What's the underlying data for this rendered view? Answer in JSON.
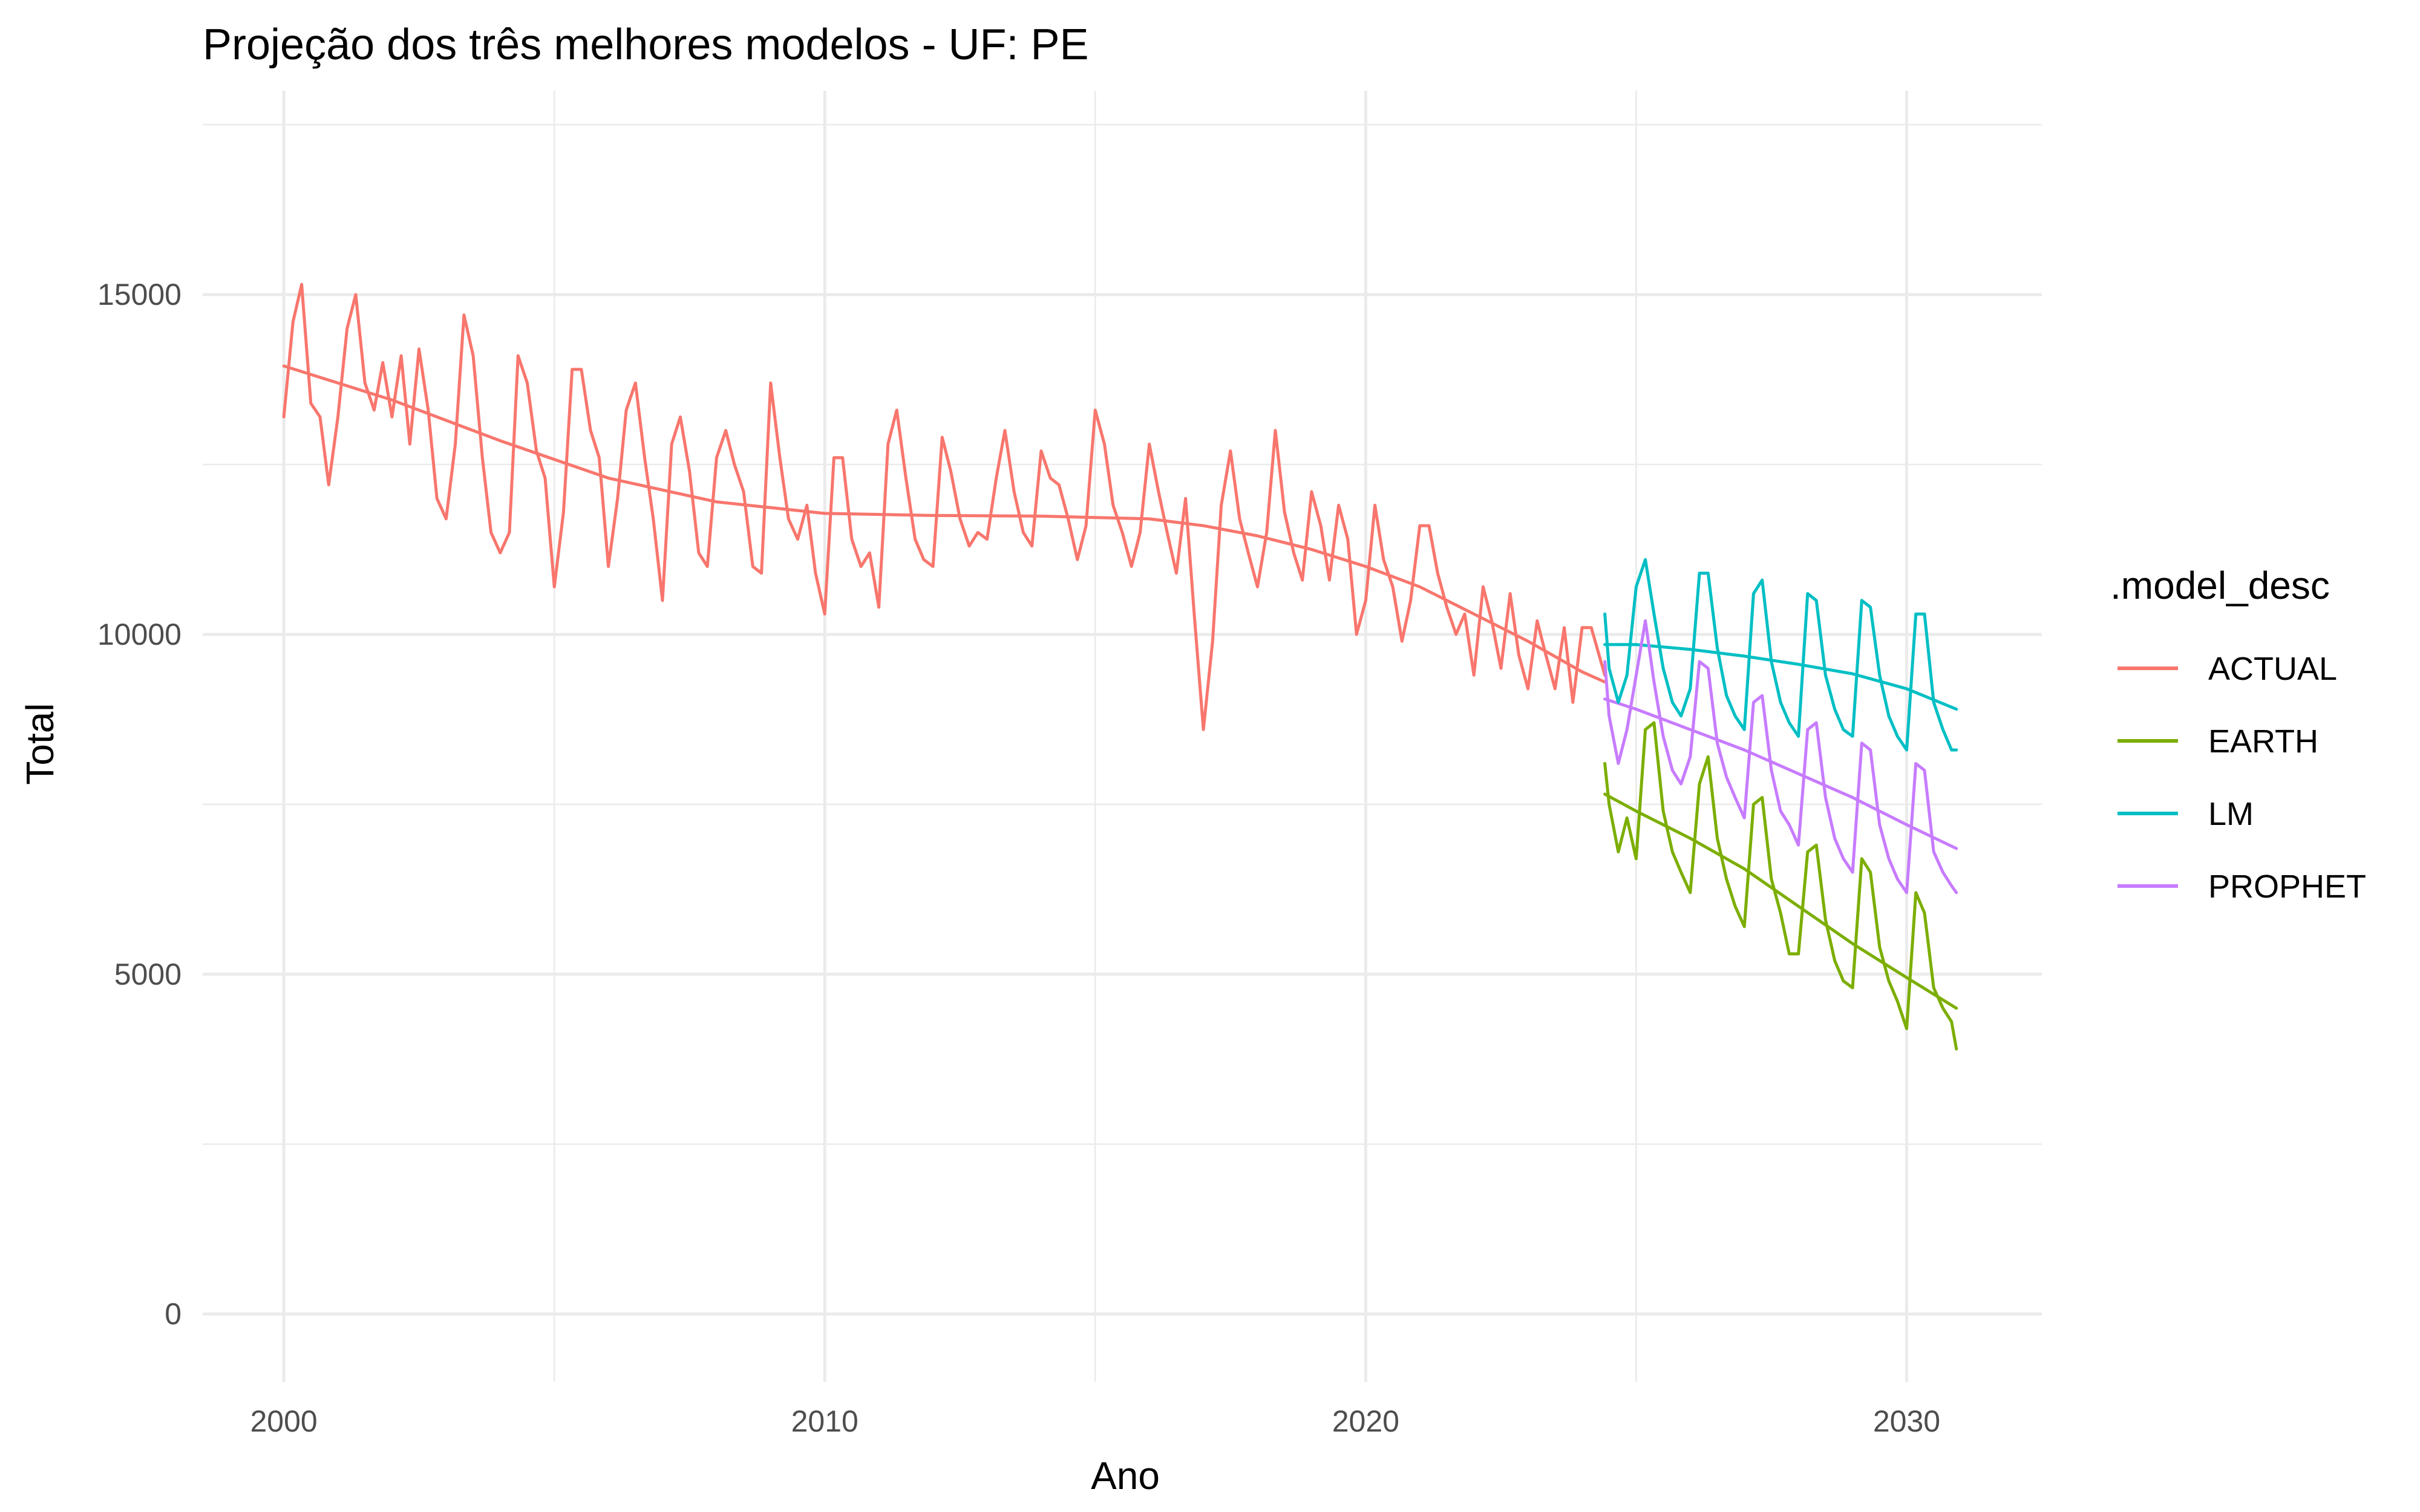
{
  "chart_data": {
    "type": "line",
    "title": "Projeção dos três melhores modelos - UF: PE",
    "xlabel": "Ano",
    "ylabel": "Total",
    "xlim": [
      1998.5,
      2032.5
    ],
    "ylim": [
      -1000,
      18000
    ],
    "x_ticks": [
      2000,
      2010,
      2020,
      2030
    ],
    "x_tick_labels": [
      "2000",
      "2010",
      "2020",
      "2030"
    ],
    "y_ticks": [
      0,
      5000,
      10000,
      15000
    ],
    "y_tick_labels": [
      "0",
      "5000",
      "10000",
      "15000"
    ],
    "grid": true,
    "legend": {
      "title": ".model_desc",
      "position": "right",
      "entries": [
        "ACTUAL",
        "EARTH",
        "LM",
        "PROPHET"
      ]
    },
    "series": [
      {
        "name": "ACTUAL",
        "color": "#F8766D",
        "x": [
          2000.0,
          2000.17,
          2000.33,
          2000.5,
          2000.67,
          2000.83,
          2001.0,
          2001.17,
          2001.33,
          2001.5,
          2001.67,
          2001.83,
          2002.0,
          2002.17,
          2002.33,
          2002.5,
          2002.67,
          2002.83,
          2003.0,
          2003.17,
          2003.33,
          2003.5,
          2003.67,
          2003.83,
          2004.0,
          2004.17,
          2004.33,
          2004.5,
          2004.67,
          2004.83,
          2005.0,
          2005.17,
          2005.33,
          2005.5,
          2005.67,
          2005.83,
          2006.0,
          2006.17,
          2006.33,
          2006.5,
          2006.67,
          2006.83,
          2007.0,
          2007.17,
          2007.33,
          2007.5,
          2007.67,
          2007.83,
          2008.0,
          2008.17,
          2008.33,
          2008.5,
          2008.67,
          2008.83,
          2009.0,
          2009.17,
          2009.33,
          2009.5,
          2009.67,
          2009.83,
          2010.0,
          2010.17,
          2010.33,
          2010.5,
          2010.67,
          2010.83,
          2011.0,
          2011.17,
          2011.33,
          2011.5,
          2011.67,
          2011.83,
          2012.0,
          2012.17,
          2012.33,
          2012.5,
          2012.67,
          2012.83,
          2013.0,
          2013.17,
          2013.33,
          2013.5,
          2013.67,
          2013.83,
          2014.0,
          2014.17,
          2014.33,
          2014.5,
          2014.67,
          2014.83,
          2015.0,
          2015.17,
          2015.33,
          2015.5,
          2015.67,
          2015.83,
          2016.0,
          2016.17,
          2016.33,
          2016.5,
          2016.67,
          2016.83,
          2017.0,
          2017.17,
          2017.33,
          2017.5,
          2017.67,
          2017.83,
          2018.0,
          2018.17,
          2018.33,
          2018.5,
          2018.67,
          2018.83,
          2019.0,
          2019.17,
          2019.33,
          2019.5,
          2019.67,
          2019.83,
          2020.0,
          2020.17,
          2020.33,
          2020.5,
          2020.67,
          2020.83,
          2021.0,
          2021.17,
          2021.33,
          2021.5,
          2021.67,
          2021.83,
          2022.0,
          2022.17,
          2022.33,
          2022.5,
          2022.67,
          2022.83,
          2023.0,
          2023.17,
          2023.33,
          2023.5,
          2023.67,
          2023.83,
          2024.0,
          2024.17,
          2024.42
        ],
        "y": [
          13200,
          14600,
          15150,
          13400,
          13200,
          12200,
          13200,
          14500,
          15000,
          13700,
          13300,
          14000,
          13200,
          14100,
          12800,
          14200,
          13300,
          12000,
          11700,
          12800,
          14700,
          14100,
          12600,
          11500,
          11200,
          11500,
          14100,
          13700,
          12700,
          12300,
          10700,
          11800,
          13900,
          13900,
          13000,
          12600,
          11000,
          12000,
          13300,
          13700,
          12600,
          11700,
          10500,
          12800,
          13200,
          12400,
          11200,
          11000,
          12600,
          13000,
          12500,
          12100,
          11000,
          10900,
          13700,
          12600,
          11700,
          11400,
          11900,
          10900,
          10300,
          12600,
          12600,
          11400,
          11000,
          11200,
          10400,
          12800,
          13300,
          12300,
          11400,
          11100,
          11000,
          12900,
          12400,
          11700,
          11300,
          11500,
          11400,
          12300,
          13000,
          12100,
          11500,
          11300,
          12700,
          12300,
          12200,
          11700,
          11100,
          11600,
          13300,
          12800,
          11900,
          11500,
          11000,
          11500,
          12800,
          12100,
          11500,
          10900,
          12000,
          10300,
          8600,
          9900,
          11900,
          12700,
          11700,
          11200,
          10700,
          11500,
          13000,
          11800,
          11200,
          10800,
          12100,
          11600,
          10800,
          11900,
          11400,
          10000,
          10500,
          11900,
          11100,
          10700,
          9900,
          10500,
          11600,
          11600,
          10900,
          10400,
          10000,
          10300,
          9400,
          10700,
          10200,
          9500,
          10600,
          9700,
          9200,
          10200,
          9700,
          9200,
          10100,
          9000,
          10100,
          10100,
          9400
        ]
      },
      {
        "name": "EARTH",
        "color": "#7CAE00",
        "x": [
          2024.42,
          2024.5,
          2024.67,
          2024.83,
          2025.0,
          2025.17,
          2025.33,
          2025.5,
          2025.67,
          2025.83,
          2026.0,
          2026.17,
          2026.33,
          2026.5,
          2026.67,
          2026.83,
          2027.0,
          2027.17,
          2027.33,
          2027.5,
          2027.67,
          2027.83,
          2028.0,
          2028.17,
          2028.33,
          2028.5,
          2028.67,
          2028.83,
          2029.0,
          2029.17,
          2029.33,
          2029.5,
          2029.67,
          2029.83,
          2030.0,
          2030.17,
          2030.33,
          2030.5,
          2030.67,
          2030.83,
          2030.92
        ],
        "y": [
          8100,
          7500,
          6800,
          7300,
          6700,
          8600,
          8700,
          7400,
          6800,
          6500,
          6200,
          7800,
          8200,
          7000,
          6400,
          6000,
          5700,
          7500,
          7600,
          6400,
          5900,
          5300,
          5300,
          6800,
          6900,
          5800,
          5200,
          4900,
          4800,
          6700,
          6500,
          5400,
          4900,
          4600,
          4200,
          6200,
          5900,
          4800,
          4500,
          4300,
          3900
        ]
      },
      {
        "name": "LM",
        "color": "#00BFC4",
        "x": [
          2024.42,
          2024.5,
          2024.67,
          2024.83,
          2025.0,
          2025.17,
          2025.33,
          2025.5,
          2025.67,
          2025.83,
          2026.0,
          2026.17,
          2026.33,
          2026.5,
          2026.67,
          2026.83,
          2027.0,
          2027.17,
          2027.33,
          2027.5,
          2027.67,
          2027.83,
          2028.0,
          2028.17,
          2028.33,
          2028.5,
          2028.67,
          2028.83,
          2029.0,
          2029.17,
          2029.33,
          2029.5,
          2029.67,
          2029.83,
          2030.0,
          2030.17,
          2030.33,
          2030.5,
          2030.67,
          2030.83,
          2030.92
        ],
        "y": [
          10300,
          9500,
          9000,
          9400,
          10700,
          11100,
          10300,
          9500,
          9000,
          8800,
          9200,
          10900,
          10900,
          9800,
          9100,
          8800,
          8600,
          10600,
          10800,
          9600,
          9000,
          8700,
          8500,
          10600,
          10500,
          9400,
          8900,
          8600,
          8500,
          10500,
          10400,
          9400,
          8800,
          8500,
          8300,
          10300,
          10300,
          9000,
          8600,
          8300,
          8300
        ]
      },
      {
        "name": "PROPHET",
        "color": "#C77CFF",
        "x": [
          2024.42,
          2024.5,
          2024.67,
          2024.83,
          2025.0,
          2025.17,
          2025.33,
          2025.5,
          2025.67,
          2025.83,
          2026.0,
          2026.17,
          2026.33,
          2026.5,
          2026.67,
          2026.83,
          2027.0,
          2027.17,
          2027.33,
          2027.5,
          2027.67,
          2027.83,
          2028.0,
          2028.17,
          2028.33,
          2028.5,
          2028.67,
          2028.83,
          2029.0,
          2029.17,
          2029.33,
          2029.5,
          2029.67,
          2029.83,
          2030.0,
          2030.17,
          2030.33,
          2030.5,
          2030.67,
          2030.83,
          2030.92
        ],
        "y": [
          9600,
          8800,
          8100,
          8600,
          9400,
          10200,
          9300,
          8500,
          8000,
          7800,
          8200,
          9600,
          9500,
          8400,
          7900,
          7600,
          7300,
          9000,
          9100,
          8000,
          7400,
          7200,
          6900,
          8600,
          8700,
          7600,
          7000,
          6700,
          6500,
          8400,
          8300,
          7200,
          6700,
          6400,
          6200,
          8100,
          8000,
          6800,
          6500,
          6300,
          6200
        ]
      }
    ],
    "trend_lines": [
      {
        "name": "ACTUAL",
        "color": "#F8766D",
        "x": [
          2000,
          2002,
          2004,
          2006,
          2008,
          2010,
          2012,
          2014,
          2016,
          2017,
          2018,
          2019,
          2020,
          2021,
          2022,
          2023,
          2024,
          2024.42
        ],
        "y": [
          13950,
          13450,
          12850,
          12300,
          11950,
          11780,
          11750,
          11740,
          11700,
          11600,
          11450,
          11250,
          11000,
          10700,
          10300,
          9900,
          9450,
          9300
        ]
      },
      {
        "name": "EARTH",
        "color": "#7CAE00",
        "x": [
          2024.42,
          2025,
          2026,
          2027,
          2028,
          2029,
          2030,
          2030.92
        ],
        "y": [
          7650,
          7400,
          7000,
          6550,
          6000,
          5450,
          4950,
          4500
        ]
      },
      {
        "name": "LM",
        "color": "#00BFC4",
        "x": [
          2024.42,
          2025,
          2026,
          2027,
          2028,
          2029,
          2030,
          2030.92
        ],
        "y": [
          9850,
          9850,
          9780,
          9680,
          9560,
          9420,
          9200,
          8900
        ]
      },
      {
        "name": "PROPHET",
        "color": "#C77CFF",
        "x": [
          2024.42,
          2025,
          2026,
          2027,
          2028,
          2029,
          2030,
          2030.92
        ],
        "y": [
          9050,
          8900,
          8600,
          8300,
          7950,
          7600,
          7200,
          6850
        ]
      }
    ]
  }
}
